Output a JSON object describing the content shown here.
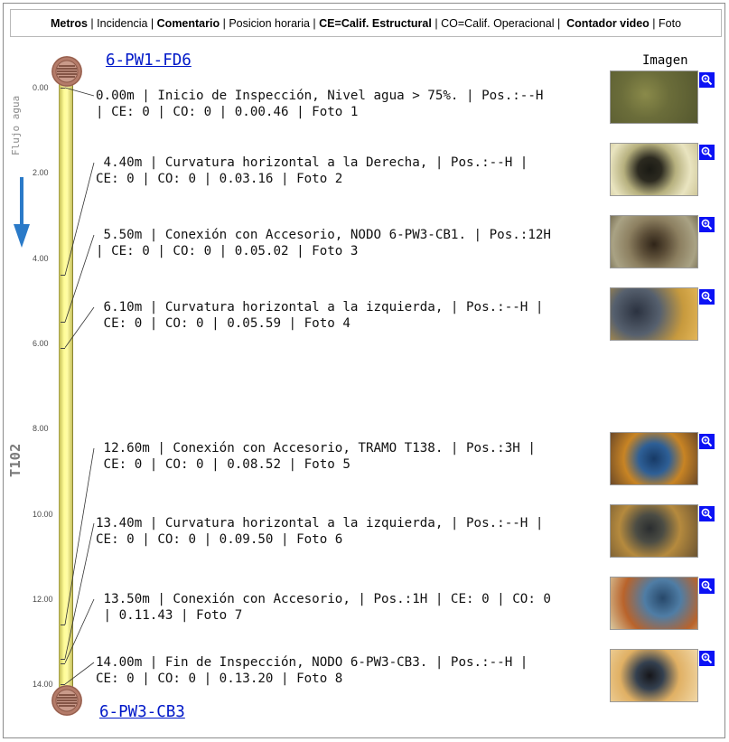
{
  "legend": [
    {
      "text": "Metros",
      "bold": true
    },
    {
      "text": " | ",
      "bold": false
    },
    {
      "text": "Incidencia",
      "bold": false
    },
    {
      "text": " | ",
      "bold": false
    },
    {
      "text": "Comentario",
      "bold": true
    },
    {
      "text": " | ",
      "bold": false
    },
    {
      "text": "Posicion horaria",
      "bold": false
    },
    {
      "text": " | ",
      "bold": false
    },
    {
      "text": "CE=Calif. Estructural",
      "bold": true
    },
    {
      "text": " | ",
      "bold": false
    },
    {
      "text": "CO=Calif. Operacional",
      "bold": false
    },
    {
      "text": " |  ",
      "bold": false
    },
    {
      "text": "Contador video",
      "bold": true
    },
    {
      "text": " | ",
      "bold": false
    },
    {
      "text": "Foto",
      "bold": false
    }
  ],
  "start_node": "6-PW1-FD6",
  "end_node": "6-PW3-CB3",
  "images_header": "Imagen",
  "flow_label": "Flujo agua",
  "segment_label": "T102",
  "scale_ticks": [
    "0.00",
    "2.00",
    "4.00",
    "6.00",
    "8.00",
    "10.00",
    "12.00",
    "14.00"
  ],
  "observations": [
    {
      "distance_m": 0.0,
      "line1": "0.00m | Inicio de Inspección, Nivel agua > 75%. | Pos.:--H",
      "line2": "| CE: 0 | CO: 0 | 0.00.46 | Foto 1",
      "photo": "Foto 1"
    },
    {
      "distance_m": 4.4,
      "line1": " 4.40m | Curvatura horizontal a la Derecha, | Pos.:--H |",
      "line2": "CE: 0 | CO: 0 | 0.03.16 | Foto 2",
      "photo": "Foto 2"
    },
    {
      "distance_m": 5.5,
      "line1": " 5.50m | Conexión con Accesorio, NODO 6-PW3-CB1. | Pos.:12H",
      "line2": "| CE: 0 | CO: 0 | 0.05.02 | Foto 3",
      "photo": "Foto 3"
    },
    {
      "distance_m": 6.1,
      "line1": " 6.10m | Curvatura horizontal a la izquierda, | Pos.:--H |",
      "line2": " CE: 0 | CO: 0 | 0.05.59 | Foto 4",
      "photo": "Foto 4"
    },
    {
      "distance_m": 12.6,
      "line1": " 12.60m | Conexión con Accesorio, TRAMO T138. | Pos.:3H |",
      "line2": " CE: 0 | CO: 0 | 0.08.52 | Foto 5",
      "photo": "Foto 5"
    },
    {
      "distance_m": 13.4,
      "line1": "13.40m | Curvatura horizontal a la izquierda, | Pos.:--H |",
      "line2": "CE: 0 | CO: 0 | 0.09.50 | Foto 6",
      "photo": "Foto 6"
    },
    {
      "distance_m": 13.5,
      "line1": " 13.50m | Conexión con Accesorio, | Pos.:1H | CE: 0 | CO: 0",
      "line2": " | 0.11.43 | Foto 7",
      "photo": "Foto 7"
    },
    {
      "distance_m": 14.0,
      "line1": "14.00m | Fin de Inspección, NODO 6-PW3-CB3. | Pos.:--H |",
      "line2": "CE: 0 | CO: 0 | 0.13.20 | Foto 8",
      "photo": "Foto 8"
    }
  ],
  "colors": {
    "link": "#0018c8",
    "pipe": "#fffc98",
    "manhole": "#b47b69",
    "zoom_button": "#0b12f5",
    "flow_arrow": "#2a7ac8"
  },
  "icons": {
    "manhole": "manhole-icon",
    "zoom": "magnifier-icon",
    "flow": "arrow-down-icon"
  }
}
